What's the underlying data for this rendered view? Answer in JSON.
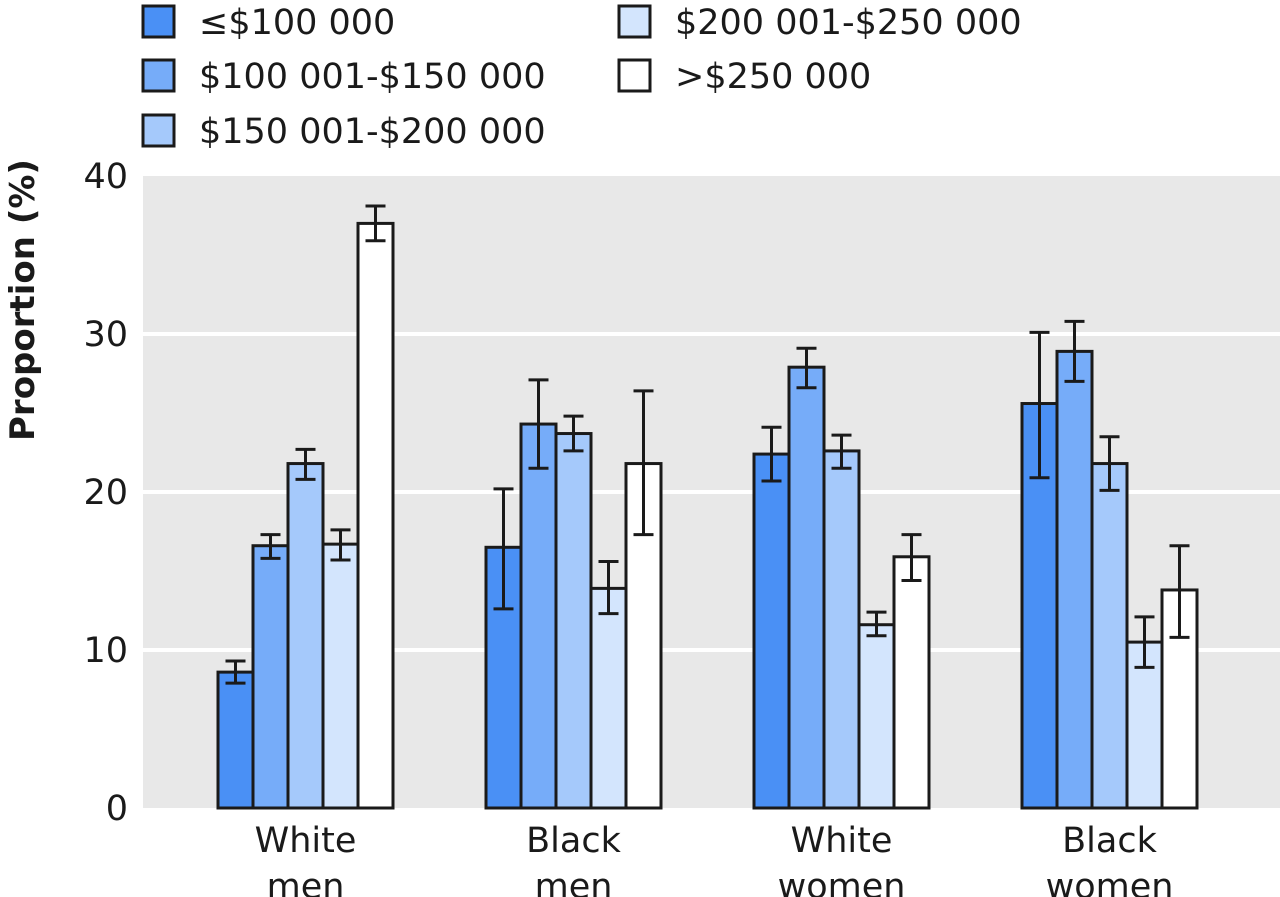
{
  "chart_data": {
    "type": "bar",
    "ylabel": "Proportion (%)",
    "ylim": [
      0,
      40
    ],
    "yticks": [
      0,
      10,
      20,
      30,
      40
    ],
    "grid": true,
    "legend_position": "top",
    "categories": [
      "White\nmen",
      "Black\nmen",
      "White\nwomen",
      "Black\nwomen"
    ],
    "series": [
      {
        "name": "≤$100 000",
        "color": "#4a90f5",
        "values": [
          8.6,
          16.5,
          22.4,
          25.6
        ],
        "error_low": [
          7.9,
          12.6,
          20.7,
          20.9
        ],
        "error_high": [
          9.3,
          20.2,
          24.1,
          30.1
        ]
      },
      {
        "name": "$100 001-$150 000",
        "color": "#76acf9",
        "values": [
          16.6,
          24.3,
          27.9,
          28.9
        ],
        "error_low": [
          15.8,
          21.5,
          26.6,
          27.0
        ],
        "error_high": [
          17.3,
          27.1,
          29.1,
          30.8
        ]
      },
      {
        "name": "$150 001-$200 000",
        "color": "#a5c9fb",
        "values": [
          21.8,
          23.7,
          22.6,
          21.8
        ],
        "error_low": [
          20.8,
          22.6,
          21.5,
          20.1
        ],
        "error_high": [
          22.7,
          24.8,
          23.6,
          23.5
        ]
      },
      {
        "name": "$200 001-$250 000",
        "color": "#d3e5fd",
        "values": [
          16.7,
          13.9,
          11.6,
          10.5
        ],
        "error_low": [
          15.7,
          12.3,
          10.9,
          8.9
        ],
        "error_high": [
          17.6,
          15.6,
          12.4,
          12.1
        ]
      },
      {
        "name": ">$250 000",
        "color": "#ffffff",
        "values": [
          37.0,
          21.8,
          15.9,
          13.8
        ],
        "error_low": [
          35.9,
          17.3,
          14.4,
          10.8
        ],
        "error_high": [
          38.1,
          26.4,
          17.3,
          16.6
        ]
      }
    ]
  }
}
